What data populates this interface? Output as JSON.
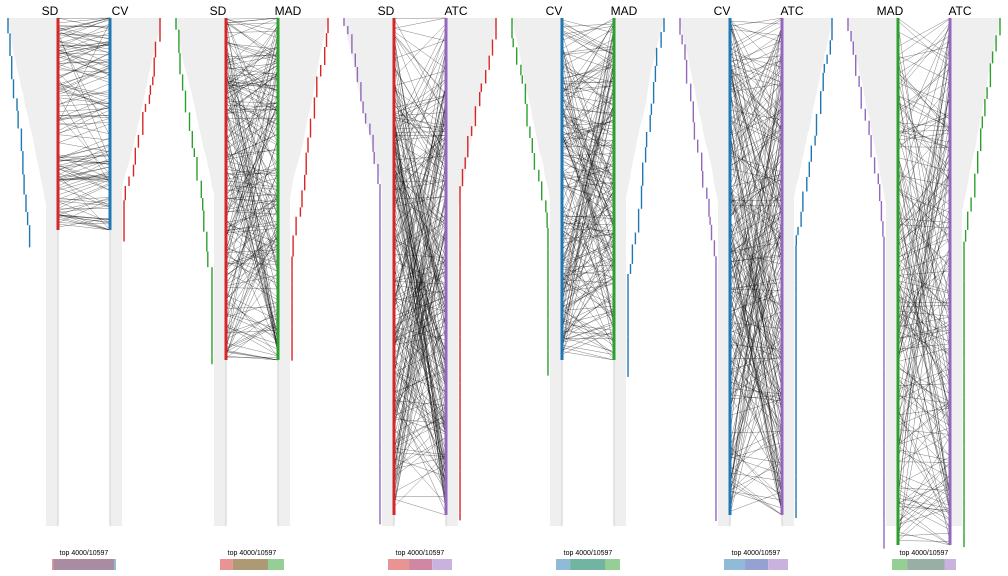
{
  "chart_data": {
    "type": "parallel-rank-comparison",
    "colors": {
      "SD": "#d62728",
      "CV": "#1f77b4",
      "MAD": "#2ca02c",
      "ATC": "#9467bd",
      "background": "#efefef",
      "line": "#000000"
    },
    "panels": [
      {
        "left": "SD",
        "right": "CV",
        "top_label": "top 4000/10597",
        "overlap": {
          "left_only": 0.02,
          "both": 0.95,
          "right_only": 0.03
        }
      },
      {
        "left": "SD",
        "right": "MAD",
        "top_label": "top 4000/10597",
        "overlap": {
          "left_only": 0.2,
          "both": 0.55,
          "right_only": 0.25
        }
      },
      {
        "left": "SD",
        "right": "ATC",
        "top_label": "top 4000/10597",
        "overlap": {
          "left_only": 0.33,
          "both": 0.36,
          "right_only": 0.31
        }
      },
      {
        "left": "CV",
        "right": "MAD",
        "top_label": "top 4000/10597",
        "overlap": {
          "left_only": 0.22,
          "both": 0.55,
          "right_only": 0.23
        }
      },
      {
        "left": "CV",
        "right": "ATC",
        "top_label": "top 4000/10597",
        "overlap": {
          "left_only": 0.33,
          "both": 0.36,
          "right_only": 0.31
        }
      },
      {
        "left": "MAD",
        "right": "ATC",
        "top_label": "top 4000/10597",
        "overlap": {
          "left_only": 0.24,
          "both": 0.58,
          "right_only": 0.18
        }
      }
    ]
  }
}
